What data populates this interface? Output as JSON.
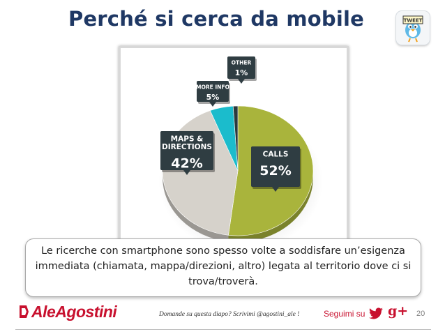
{
  "slide": {
    "title": "Perché si cerca da mobile",
    "caption": "Le ricerche con smartphone sono spesso volte a soddisfare un’esigenza immediata (chiamata, mappa/direzioni, altro) legata al territorio dove ci si trova/troverà.",
    "page_number": "20"
  },
  "footer": {
    "logo_text": "AleAgostini",
    "note": "Domande su questa diapo? Scrivimi @agostini_ale !",
    "follow_label": "Seguimi su",
    "gplus_label": "g+"
  },
  "badge": {
    "label": "TWEET"
  },
  "chart_data": {
    "type": "pie",
    "slices": [
      {
        "label": "CALLS",
        "value": 52,
        "display": "52%",
        "color": "#a9b43c"
      },
      {
        "label": "MAPS & DIRECTIONS",
        "value": 42,
        "display": "42%",
        "color": "#d6d2cb"
      },
      {
        "label": "MORE INFO",
        "value": 5,
        "display": "5%",
        "color": "#1bbccc"
      },
      {
        "label": "OTHER",
        "value": 1,
        "display": "1%",
        "color": "#2b3a3d"
      }
    ]
  }
}
